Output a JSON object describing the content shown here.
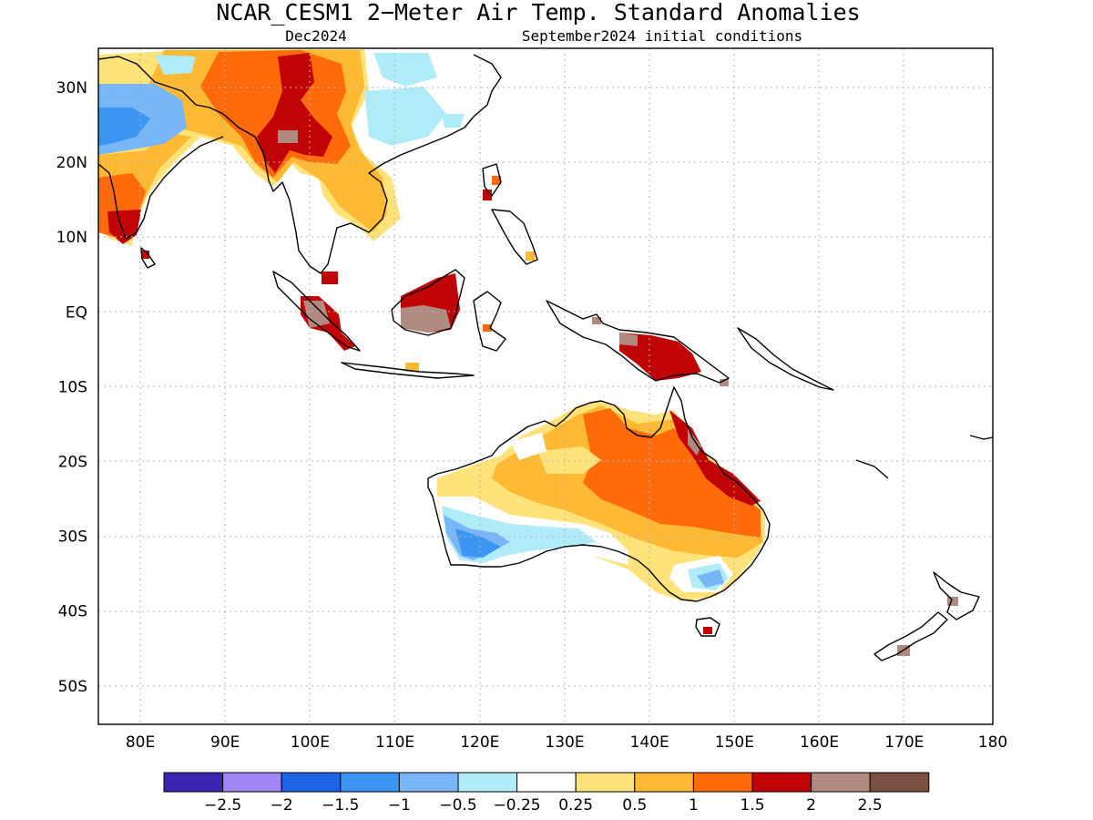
{
  "title": "NCAR_CESM1 2−Meter Air Temp. Standard Anomalies",
  "valid_month": "Dec2024",
  "init_conditions": "September2024 initial conditions",
  "lon_ticks": [
    "80E",
    "90E",
    "100E",
    "110E",
    "120E",
    "130E",
    "140E",
    "150E",
    "160E",
    "170E",
    "180"
  ],
  "lat_ticks": [
    "30N",
    "20N",
    "10N",
    "EQ",
    "10S",
    "20S",
    "30S",
    "40S",
    "50S"
  ],
  "colorbar": {
    "colors": [
      "#3b25b0",
      "#9f85f5",
      "#1f63e6",
      "#3c95f0",
      "#78b6f7",
      "#b0ecf8",
      "#ffffff",
      "#ffe37a",
      "#ffb933",
      "#ff6a0a",
      "#c00406",
      "#b08a80",
      "#7a5040"
    ],
    "labels": [
      "−2.5",
      "−2",
      "−1.5",
      "−1",
      "−0.5",
      "−0.25",
      "0.25",
      "0.5",
      "1",
      "1.5",
      "2",
      "2.5"
    ]
  }
}
